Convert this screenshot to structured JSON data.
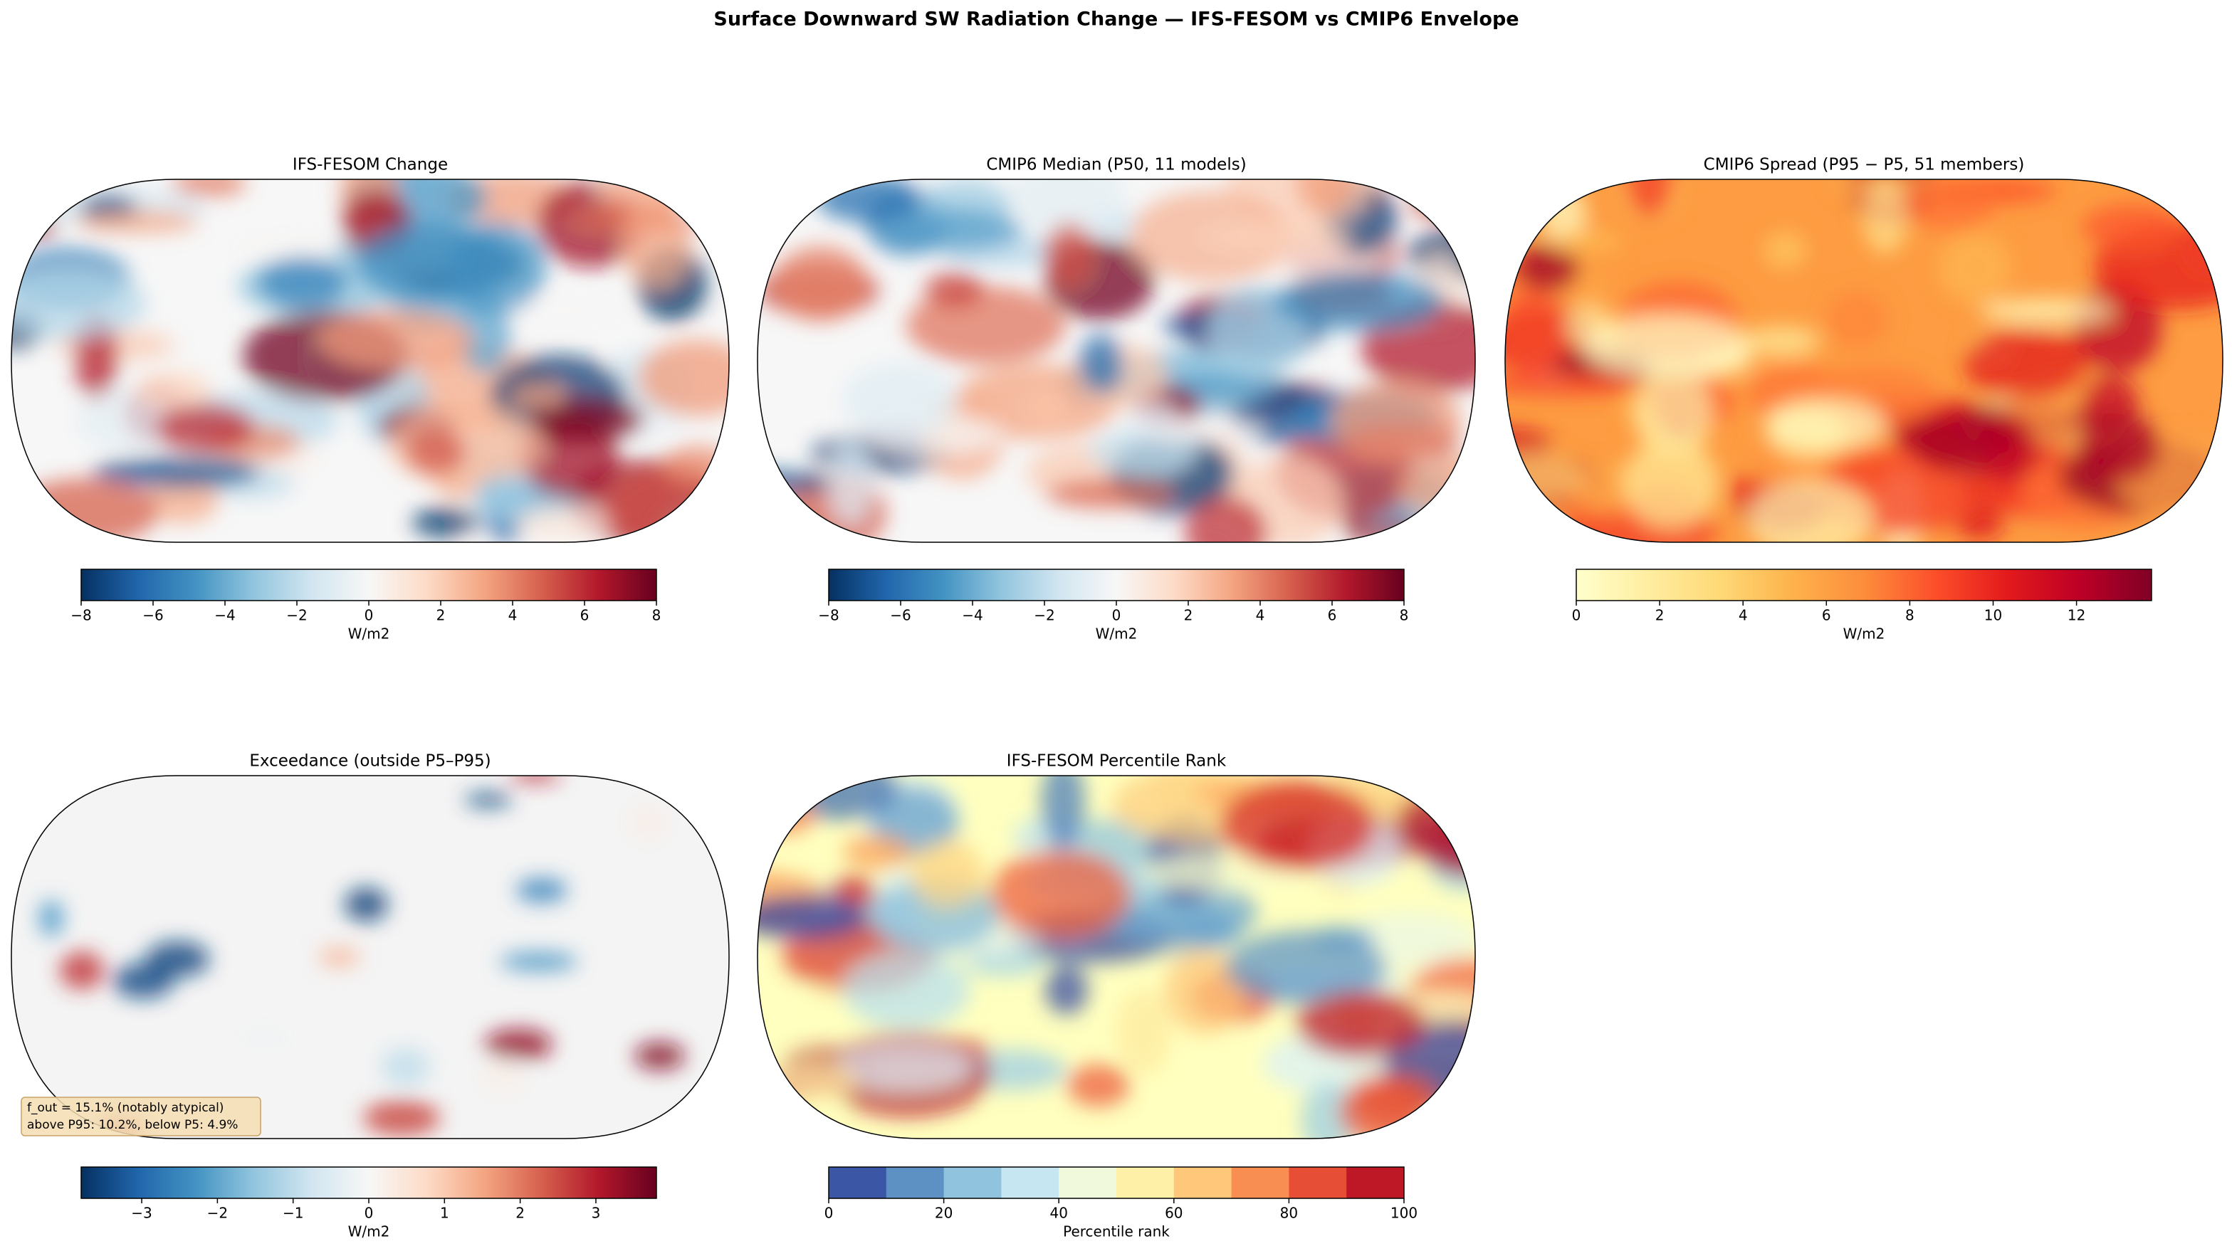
{
  "title": "Surface Downward SW Radiation Change — IFS-FESOM vs CMIP6 Envelope",
  "chart_data": [
    {
      "type": "map",
      "title": "IFS-FESOM Change",
      "colormap": "RdBu_r",
      "colorbar": {
        "label": "W/m2",
        "lim": [
          -8,
          8
        ],
        "ticks": [
          {
            "value": -8,
            "label": "−8"
          },
          {
            "value": -6,
            "label": "−6"
          },
          {
            "value": -4,
            "label": "−4"
          },
          {
            "value": -2,
            "label": "−2"
          },
          0,
          2,
          4,
          6,
          8
        ]
      }
    },
    {
      "type": "map",
      "title": "CMIP6 Median (P50, 11 models)",
      "colormap": "RdBu_r",
      "colorbar": {
        "label": "W/m2",
        "lim": [
          -8,
          8
        ],
        "ticks": [
          {
            "value": -8,
            "label": "−8"
          },
          {
            "value": -6,
            "label": "−6"
          },
          {
            "value": -4,
            "label": "−4"
          },
          {
            "value": -2,
            "label": "−2"
          },
          0,
          2,
          4,
          6,
          8
        ]
      }
    },
    {
      "type": "map",
      "title": "CMIP6 Spread (P95 − P5, 51 members)",
      "colormap": "YlOrRd",
      "colorbar": {
        "label": "W/m2",
        "lim": [
          0,
          13.8
        ],
        "ticks": [
          0,
          2,
          4,
          6,
          8,
          10,
          12
        ]
      }
    },
    {
      "type": "map",
      "title": "Exceedance (outside P5–P95)",
      "colormap": "RdBu_r",
      "annotation": [
        "f_out = 15.1% (notably atypical)",
        "above P95: 10.2%, below P5: 4.9%"
      ],
      "colorbar": {
        "label": "W/m2",
        "lim": [
          -3.8,
          3.8
        ],
        "ticks": [
          {
            "value": -3,
            "label": "−3"
          },
          {
            "value": -2,
            "label": "−2"
          },
          {
            "value": -1,
            "label": "−1"
          },
          0,
          1,
          2,
          3
        ]
      }
    },
    {
      "type": "map",
      "title": "IFS-FESOM Percentile Rank",
      "colormap": "RdYlBu_r",
      "levels": 10,
      "colorbar": {
        "label": "Percentile rank",
        "lim": [
          0,
          100
        ],
        "ticks": [
          0,
          20,
          40,
          60,
          80,
          100
        ]
      }
    }
  ]
}
